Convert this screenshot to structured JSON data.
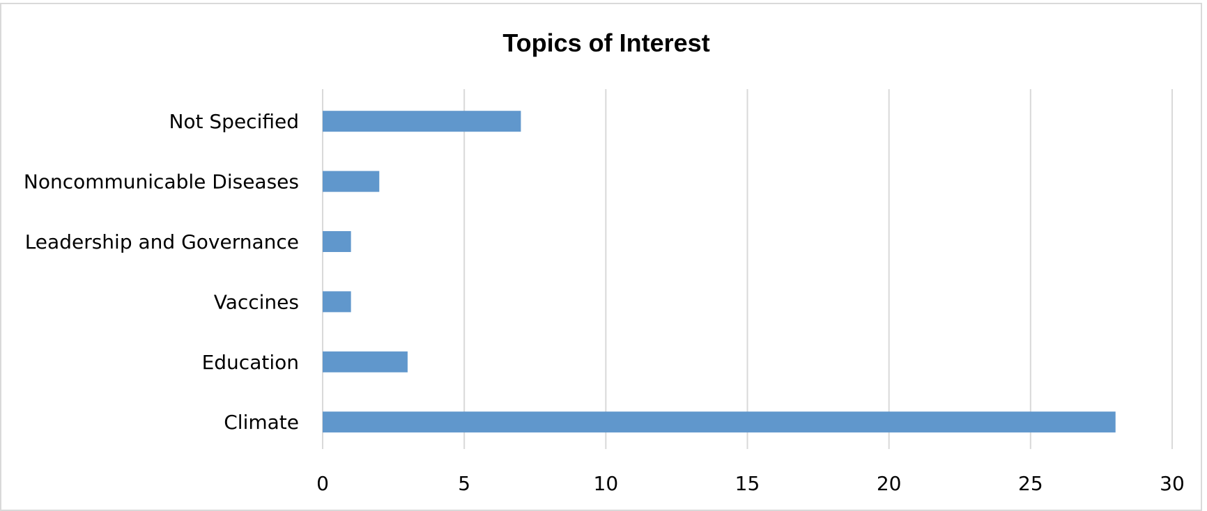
{
  "chart_data": {
    "type": "bar",
    "orientation": "horizontal",
    "title": "Topics of Interest",
    "xlabel": "",
    "ylabel": "",
    "categories": [
      "Not Specified",
      "Noncommunicable Diseases",
      "Leadership and Governance",
      "Vaccines",
      "Education",
      "Climate"
    ],
    "values": [
      7,
      2,
      1,
      1,
      3,
      28
    ],
    "xlim": [
      0,
      30
    ],
    "xticks": [
      0,
      5,
      10,
      15,
      20,
      25,
      30
    ],
    "xtick_labels": [
      "0",
      "5",
      "10",
      "15",
      "20",
      "25",
      "30"
    ],
    "grid": "vertical gridlines",
    "legend": "none",
    "bar_color": "#6097cc",
    "grid_color": "#d9d9d9"
  }
}
